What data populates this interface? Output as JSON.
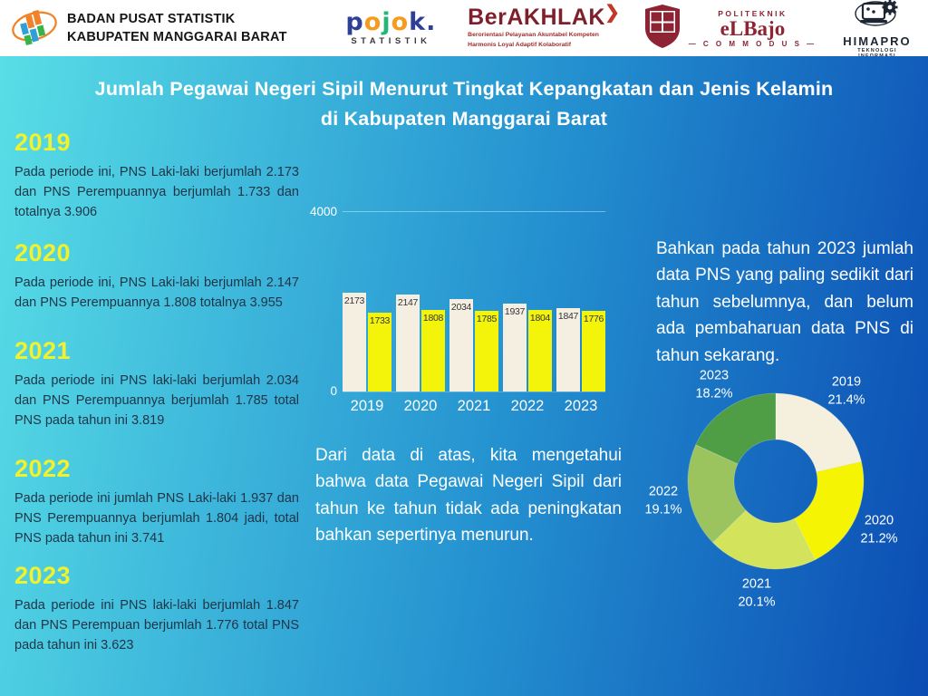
{
  "header": {
    "bps": {
      "line1": "BADAN PUSAT STATISTIK",
      "line2": "KABUPATEN MANGGARAI BARAT"
    },
    "pojok": {
      "letters": [
        {
          "ch": "p",
          "color": "#2d3f96"
        },
        {
          "ch": "o",
          "color": "#f59c20"
        },
        {
          "ch": "j",
          "color": "#27b575"
        },
        {
          "ch": "o",
          "color": "#f59c20"
        },
        {
          "ch": "k",
          "color": "#2d3f96"
        },
        {
          "ch": ".",
          "color": "#2d3f96"
        }
      ],
      "sub": "STATISTIK"
    },
    "berakhlak": {
      "title": "BerAKHLAK",
      "arrow": "❯",
      "tagline1": "Berorientasi Pelayanan Akuntabel Kompeten",
      "tagline2": "Harmonis Loyal Adaptif Kolaboratif"
    },
    "elbajo": {
      "line1": "POLITEKNIK",
      "line2": "eLBajo",
      "line3": "— C O M M O D U S —"
    },
    "himapro": {
      "title": "HIMAPRO",
      "sub": "TEKNOLOGI INFORMASI"
    }
  },
  "title": {
    "line1": "Jumlah Pegawai Negeri Sipil Menurut Tingkat Kepangkatan dan Jenis Kelamin",
    "line2": "di Kabupaten Manggarai Barat"
  },
  "years": [
    {
      "year": "2019",
      "text": "Pada periode ini, PNS Laki-laki berjumlah 2.173 dan PNS Perempuannya berjumlah 1.733 dan totalnya 3.906"
    },
    {
      "year": "2020",
      "text": "Pada periode ini, PNS Laki-laki berjumlah 2.147 dan PNS Perempuannya 1.808 totalnya 3.955"
    },
    {
      "year": "2021",
      "text": "Pada periode ini PNS laki-laki berjumlah 2.034 dan PNS Perempuannya berjumlah 1.785 total PNS pada tahun ini 3.819"
    },
    {
      "year": "2022",
      "text": "Pada periode ini jumlah PNS Laki-laki 1.937 dan PNS Perempuannya berjumlah 1.804 jadi, total PNS pada tahun ini 3.741"
    },
    {
      "year": "2023",
      "text": "Pada periode ini PNS laki-laki berjumlah 1.847 dan PNS Perempuan berjumlah 1.776 total PNS pada tahun ini 3.623"
    }
  ],
  "mid_note": "Dari data di atas, kita mengetahui bahwa data Pegawai Negeri Sipil dari tahun ke tahun tidak ada peningkatan bahkan sepertinya menurun.",
  "right_note": "Bahkan pada tahun 2023 jumlah data PNS yang paling sedikit dari tahun sebelumnya, dan belum ada pembaharuan data PNS di tahun sekarang.",
  "chart_data": [
    {
      "type": "bar",
      "categories": [
        "2019",
        "2020",
        "2021",
        "2022",
        "2023"
      ],
      "series": [
        {
          "name": "Laki-laki",
          "color": "#f4efe0",
          "values": [
            2173,
            2147,
            2034,
            1937,
            1847
          ]
        },
        {
          "name": "Perempuan",
          "color": "#f4f40a",
          "values": [
            1733,
            1808,
            1785,
            1804,
            1776
          ]
        }
      ],
      "ylim": [
        0,
        4000
      ],
      "yticks": [
        "4000",
        "0"
      ],
      "value_labels": true,
      "legend": "none",
      "grid": "top-line-only"
    },
    {
      "type": "pie",
      "subtype": "donut",
      "labels": [
        "2019",
        "2020",
        "2021",
        "2022",
        "2023"
      ],
      "values": [
        21.4,
        21.2,
        20.1,
        19.1,
        18.2
      ],
      "unit": "%",
      "colors": [
        "#f5efde",
        "#f4f403",
        "#d3e45c",
        "#9cc45e",
        "#4f9d45"
      ],
      "start_angle": "top",
      "direction": "clockwise",
      "legend": "labels-around"
    }
  ],
  "colors": {
    "bg_left": "#58dee6",
    "bg_right": "#0b4cb3",
    "year_heading": "#f1f22b",
    "dark_text": "#1e3547",
    "white_text": "#ffffff"
  }
}
